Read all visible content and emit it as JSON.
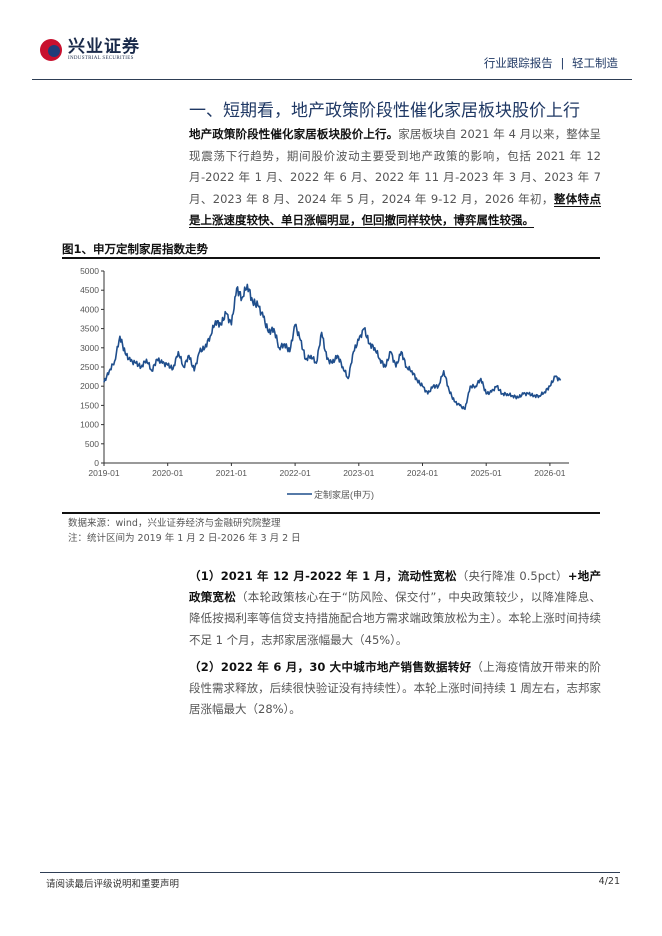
{
  "header": {
    "logo_cn": "兴业证券",
    "logo_en": "INDUSTRIAL SECURITIES",
    "report_type": "行业跟踪报告",
    "separator": "|",
    "industry": "轻工制造"
  },
  "section": {
    "title": "一、短期看，地产政策阶段性催化家居板块股价上行",
    "para_bold": "地产政策阶段性催化家居板块股价上行。",
    "para_text": "家居板块自 2021 年 4 月以来，整体呈现震荡下行趋势，期间股价波动主要受到地产政策的影响，包括 2021 年 12 月-2022 年 1 月、2022 年 6 月、2022 年 11 月-2023 年 3 月、2023 年 7 月、2023 年 8 月、2024 年 5 月，2024 年 9-12 月，2026 年初，",
    "para_underline": "整体特点是上涨速度较快、单日涨幅明显，但回撤同样较快，博弈属性较强。"
  },
  "figure": {
    "title": "图1、申万定制家居指数走势",
    "source": "数据来源：wind，兴业证券经济与金融研究院整理",
    "note": "注：统计区间为 2019 年 1 月 2 日-2026 年 3 月 2 日"
  },
  "chart_data": {
    "type": "line",
    "title": "",
    "xlabel": "",
    "ylabel": "",
    "ylim": [
      0,
      5000
    ],
    "yticks": [
      "0",
      "500",
      "1000",
      "1500",
      "2000",
      "2500",
      "3000",
      "3500",
      "4000",
      "4500",
      "5000"
    ],
    "xticks": [
      "2019-01",
      "2020-01",
      "2021-01",
      "2022-01",
      "2023-01",
      "2024-01",
      "2025-01",
      "2026-01"
    ],
    "grid": false,
    "legend": "bottom",
    "color": "#1f4e8c",
    "series": [
      {
        "name": "定制家居(申万)",
        "x": [
          "2019-01",
          "2019-02",
          "2019-03",
          "2019-04",
          "2019-05",
          "2019-06",
          "2019-07",
          "2019-08",
          "2019-09",
          "2019-10",
          "2019-11",
          "2019-12",
          "2020-01",
          "2020-02",
          "2020-03",
          "2020-04",
          "2020-05",
          "2020-06",
          "2020-07",
          "2020-08",
          "2020-09",
          "2020-10",
          "2020-11",
          "2020-12",
          "2021-01",
          "2021-02",
          "2021-03",
          "2021-04",
          "2021-05",
          "2021-06",
          "2021-07",
          "2021-08",
          "2021-09",
          "2021-10",
          "2021-11",
          "2021-12",
          "2022-01",
          "2022-02",
          "2022-03",
          "2022-04",
          "2022-05",
          "2022-06",
          "2022-07",
          "2022-08",
          "2022-09",
          "2022-10",
          "2022-11",
          "2022-12",
          "2023-01",
          "2023-02",
          "2023-03",
          "2023-04",
          "2023-05",
          "2023-06",
          "2023-07",
          "2023-08",
          "2023-09",
          "2023-10",
          "2023-11",
          "2023-12",
          "2024-01",
          "2024-02",
          "2024-03",
          "2024-04",
          "2024-05",
          "2024-06",
          "2024-07",
          "2024-08",
          "2024-09",
          "2024-10",
          "2024-11",
          "2024-12",
          "2025-01",
          "2025-02",
          "2025-03",
          "2025-04",
          "2025-05",
          "2025-06",
          "2025-07",
          "2025-08",
          "2025-09",
          "2025-10",
          "2025-11",
          "2025-12",
          "2026-01",
          "2026-02",
          "2026-03"
        ],
        "values": [
          2100,
          2400,
          2650,
          3300,
          2850,
          2650,
          2600,
          2500,
          2700,
          2400,
          2700,
          2600,
          2550,
          2450,
          2900,
          2500,
          2800,
          2400,
          2900,
          3000,
          3300,
          3700,
          3600,
          3900,
          3600,
          4550,
          4300,
          4650,
          4200,
          4100,
          3800,
          3400,
          3500,
          3000,
          3100,
          2900,
          3600,
          3200,
          2700,
          2800,
          2600,
          3400,
          2700,
          2600,
          2800,
          2500,
          2200,
          2900,
          3200,
          3500,
          3100,
          3000,
          2700,
          2500,
          2900,
          2500,
          2900,
          2500,
          2400,
          2150,
          2000,
          1800,
          2000,
          2000,
          2400,
          1900,
          1600,
          1500,
          1400,
          2000,
          2000,
          2200,
          1800,
          1850,
          2000,
          1800,
          1800,
          1750,
          1700,
          1800,
          1800,
          1750,
          1750,
          1850,
          2000,
          2250,
          2150
        ]
      }
    ]
  },
  "items": [
    {
      "bold": "（1）2021 年 12 月-2022 年 1 月，流动性宽松",
      "text1": "（央行降准 0.5pct）",
      "bold2": "+地产政策宽松",
      "text2": "（本轮政策核心在于“防风险、保交付”，中央政策较少，以降准降息、降低按揭利率等信贷支持措施配合地方需求端政策放松为主）。本轮上涨时间持续不足 1 个月，志邦家居涨幅最大（45%）。"
    },
    {
      "bold": "（2）2022 年 6 月，30 大中城市地产销售数据转好",
      "text1": "（上海疫情放开带来的阶段性需求释放，后续很快验证没有持续性）。本轮上涨时间持续 1 周左右，志邦家居涨幅最大（28%）。"
    }
  ],
  "footer": {
    "disclaimer": "请阅读最后评级说明和重要声明",
    "page": "4/21"
  }
}
